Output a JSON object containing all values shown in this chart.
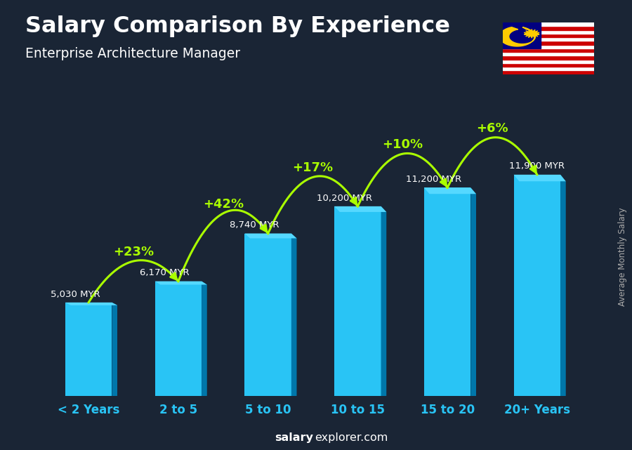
{
  "title": "Salary Comparison By Experience",
  "subtitle": "Enterprise Architecture Manager",
  "categories": [
    "< 2 Years",
    "2 to 5",
    "5 to 10",
    "10 to 15",
    "15 to 20",
    "20+ Years"
  ],
  "values": [
    5030,
    6170,
    8740,
    10200,
    11200,
    11900
  ],
  "salary_labels": [
    "5,030 MYR",
    "6,170 MYR",
    "8,740 MYR",
    "10,200 MYR",
    "11,200 MYR",
    "11,900 MYR"
  ],
  "pct_changes": [
    "+23%",
    "+42%",
    "+17%",
    "+10%",
    "+6%"
  ],
  "arrow_configs": [
    [
      0,
      1,
      "+23%"
    ],
    [
      1,
      2,
      "+42%"
    ],
    [
      2,
      3,
      "+17%"
    ],
    [
      3,
      4,
      "+10%"
    ],
    [
      4,
      5,
      "+6%"
    ]
  ],
  "bar_face_color": "#29c4f5",
  "bar_side_color": "#0077aa",
  "bar_top_color": "#55d8ff",
  "bg_color": "#1a2535",
  "title_color": "#ffffff",
  "subtitle_color": "#ffffff",
  "salary_label_color": "#ffffff",
  "pct_color": "#aaff00",
  "tick_color": "#29c4f5",
  "right_label": "Average Monthly Salary",
  "watermark_bold": "salary",
  "watermark_rest": "explorer.com",
  "ylim_max": 15000,
  "bar_width": 0.52
}
